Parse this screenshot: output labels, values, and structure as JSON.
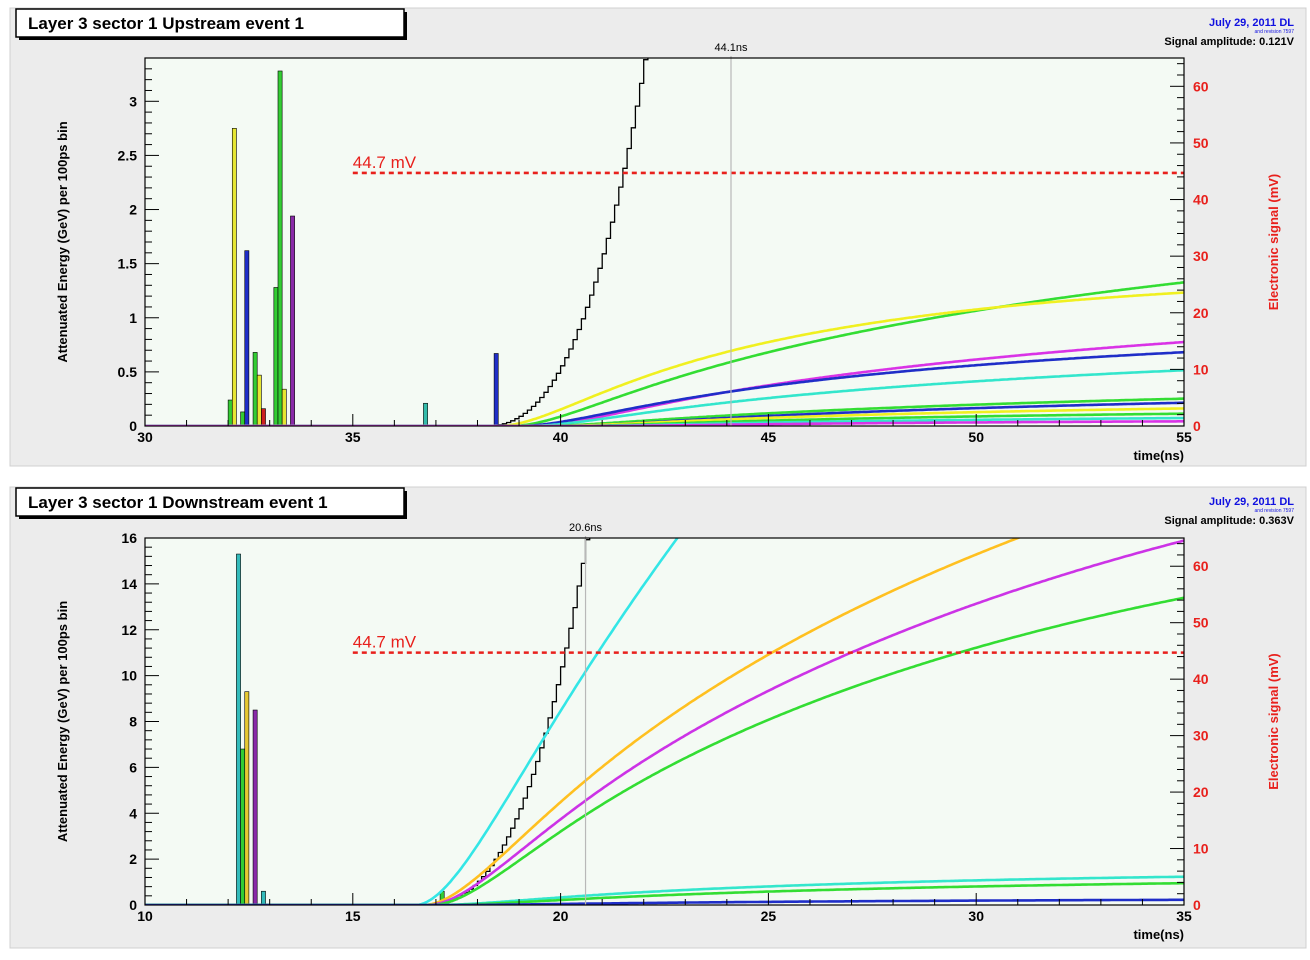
{
  "chart_data": [
    {
      "type": "bar",
      "title": "Layer 3 sector 1 Upstream event 1",
      "date": "July 29, 2011 DL",
      "revision": "and revision 7597",
      "amplitude": "Signal amplitude: 0.121V",
      "xlabel": "time(ns)",
      "ylabel": "Attenuated Energy (GeV) per 100ps bin",
      "y2label": "Electronic signal (mV)",
      "xlim": [
        30,
        55
      ],
      "ylim": [
        0,
        3.4
      ],
      "y2lim": [
        0,
        65
      ],
      "xticks": [
        30,
        35,
        40,
        45,
        50,
        55
      ],
      "yticks": [
        0,
        0.5,
        1,
        1.5,
        2,
        2.5,
        3
      ],
      "y2ticks": [
        0,
        10,
        20,
        30,
        40,
        50,
        60
      ],
      "threshold": {
        "label": "44.7 mV",
        "value": 44.7,
        "color": "#e8201c"
      },
      "crossing": {
        "label": "44.1ns",
        "x": 44.1
      },
      "bars": [
        {
          "x": 32.05,
          "value": 0.24,
          "color": "#33cc33"
        },
        {
          "x": 32.15,
          "value": 2.75,
          "color": "#e6e633"
        },
        {
          "x": 32.35,
          "value": 0.13,
          "color": "#33cc33"
        },
        {
          "x": 32.45,
          "value": 1.62,
          "color": "#1f2ec8"
        },
        {
          "x": 32.65,
          "value": 0.68,
          "color": "#33cc33"
        },
        {
          "x": 32.75,
          "value": 0.47,
          "color": "#e6e633"
        },
        {
          "x": 32.85,
          "value": 0.16,
          "color": "#cc2020"
        },
        {
          "x": 33.15,
          "value": 1.28,
          "color": "#33cc33"
        },
        {
          "x": 33.25,
          "value": 3.28,
          "color": "#33cc33"
        },
        {
          "x": 33.35,
          "value": 0.34,
          "color": "#e6e633"
        },
        {
          "x": 33.55,
          "value": 1.94,
          "color": "#8a2aa8"
        },
        {
          "x": 36.75,
          "value": 0.21,
          "color": "#33bbaa"
        },
        {
          "x": 38.45,
          "value": 0.67,
          "color": "#1f2ec8"
        }
      ],
      "series": [
        {
          "color": "#000000",
          "step": true,
          "t0": 38.2,
          "amp": 180,
          "tau": 25
        },
        {
          "color": "#33dd33",
          "t0": 38.8,
          "amp": 37,
          "tau": 14
        },
        {
          "color": "#f0f020",
          "t0": 38.5,
          "amp": 27,
          "tau": 8
        },
        {
          "color": "#d933e6",
          "t0": 39.3,
          "amp": 22,
          "tau": 14
        },
        {
          "color": "#1f2ec8",
          "t0": 39.0,
          "amp": 17,
          "tau": 11
        },
        {
          "color": "#33e6cc",
          "t0": 39.2,
          "amp": 14,
          "tau": 13
        },
        {
          "color": "#33dd33",
          "t0": 39.5,
          "amp": 7.5,
          "tau": 15
        },
        {
          "color": "#1f2ec8",
          "t0": 40.0,
          "amp": 6.5,
          "tau": 15
        },
        {
          "color": "#f0f020",
          "t0": 39.8,
          "amp": 4.5,
          "tau": 13
        },
        {
          "color": "#33dd33",
          "t0": 40.2,
          "amp": 3.2,
          "tau": 13
        },
        {
          "color": "#33e6cc",
          "t0": 40.5,
          "amp": 2.0,
          "tau": 12
        },
        {
          "color": "#d933e6",
          "t0": 41.0,
          "amp": 1.2,
          "tau": 12
        }
      ]
    },
    {
      "type": "bar",
      "title": "Layer 3 sector 1 Downstream event 1",
      "date": "July 29, 2011 DL",
      "revision": "and revision 7597",
      "amplitude": "Signal amplitude: 0.363V",
      "xlabel": "time(ns)",
      "ylabel": "Attenuated Energy (GeV) per 100ps bin",
      "y2label": "Electronic signal (mV)",
      "xlim": [
        10,
        35
      ],
      "ylim": [
        0,
        16
      ],
      "y2lim": [
        0,
        65
      ],
      "xticks": [
        10,
        15,
        20,
        25,
        30,
        35
      ],
      "yticks": [
        0,
        2,
        4,
        6,
        8,
        10,
        12,
        14,
        16
      ],
      "y2ticks": [
        0,
        10,
        20,
        30,
        40,
        50,
        60
      ],
      "threshold": {
        "label": "44.7 mV",
        "value": 44.7,
        "color": "#e8201c"
      },
      "crossing": {
        "label": "20.6ns",
        "x": 20.6
      },
      "bars": [
        {
          "x": 12.25,
          "value": 15.3,
          "color": "#33bbbb"
        },
        {
          "x": 12.35,
          "value": 6.8,
          "color": "#33cc33"
        },
        {
          "x": 12.45,
          "value": 9.3,
          "color": "#e6c833"
        },
        {
          "x": 12.65,
          "value": 8.5,
          "color": "#8a2aa8"
        },
        {
          "x": 12.85,
          "value": 0.6,
          "color": "#33bbbb"
        },
        {
          "x": 17.15,
          "value": 0.6,
          "color": "#33cc33"
        }
      ],
      "series": [
        {
          "color": "#000000",
          "step": true,
          "t0": 16.8,
          "amp": 9999,
          "tau": 1
        },
        {
          "color": "#33e6e6",
          "t0": 16.5,
          "amp": 400,
          "tau": 35
        },
        {
          "color": "#ffc020",
          "t0": 16.7,
          "amp": 110,
          "tau": 16
        },
        {
          "color": "#cc33e6",
          "t0": 16.8,
          "amp": 95,
          "tau": 16
        },
        {
          "color": "#33dd33",
          "t0": 16.9,
          "amp": 75,
          "tau": 14
        },
        {
          "color": "#33e6cc",
          "t0": 17.0,
          "amp": 6.0,
          "tau": 10
        },
        {
          "color": "#33dd33",
          "t0": 17.2,
          "amp": 5.0,
          "tau": 12
        },
        {
          "color": "#1f2ec8",
          "t0": 17.5,
          "amp": 1.2,
          "tau": 12
        }
      ]
    }
  ]
}
